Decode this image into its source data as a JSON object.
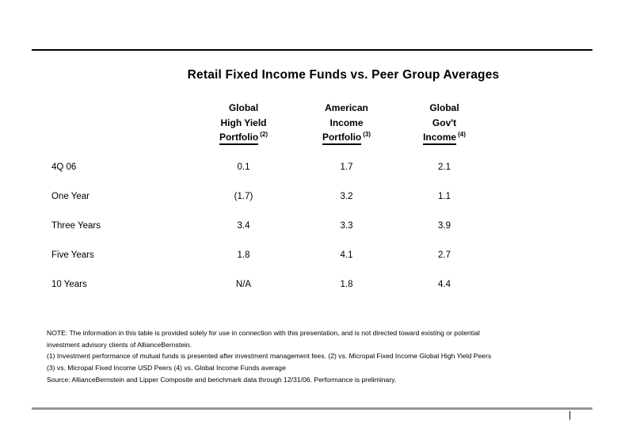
{
  "slide": {
    "title": "Retail Fixed Income Funds vs. Peer Group Averages",
    "page_marker": "|"
  },
  "table": {
    "columns": [
      {
        "line1": "Global",
        "line2": "High Yield",
        "line3": "Portfolio",
        "footnote_ref": "(2)"
      },
      {
        "line1": "American",
        "line2": "Income",
        "line3": "Portfolio",
        "footnote_ref": "(3)"
      },
      {
        "line1": "Global",
        "line2": "Gov't",
        "line3": "Income",
        "footnote_ref": "(4)"
      }
    ],
    "rows": [
      {
        "label": "4Q 06",
        "values": [
          "0.1",
          "1.7",
          "2.1"
        ]
      },
      {
        "label": "One Year",
        "values": [
          "(1.7)",
          "3.2",
          "1.1"
        ]
      },
      {
        "label": "Three Years",
        "values": [
          "3.4",
          "3.3",
          "3.9"
        ]
      },
      {
        "label": "Five Years",
        "values": [
          "1.8",
          "4.1",
          "2.7"
        ]
      },
      {
        "label": "10 Years",
        "values": [
          "N/A",
          "1.8",
          "4.4"
        ]
      }
    ]
  },
  "footnotes": {
    "line1": "NOTE:  The information in this table is provided solely for use in connection with this presentation, and is not directed toward existing or potential",
    "line2": "investment advisory clients of AllianceBernstein.",
    "line3": "(1) Investment performance of mutual funds is presented after investment management fees. (2) vs. Micropal Fixed Income Global High Yield Peers",
    "line4": "(3) vs. Micropal Fixed Income USD Peers (4) vs. Global Income Funds average",
    "line5": "Source:  AllianceBernstein and Lipper Composite and benchmark data through 12/31/06. Performance is preliminary."
  },
  "colors": {
    "background": "#ffffff",
    "text": "#000000",
    "top_rule": "#000000",
    "bottom_rule": "#969696"
  }
}
